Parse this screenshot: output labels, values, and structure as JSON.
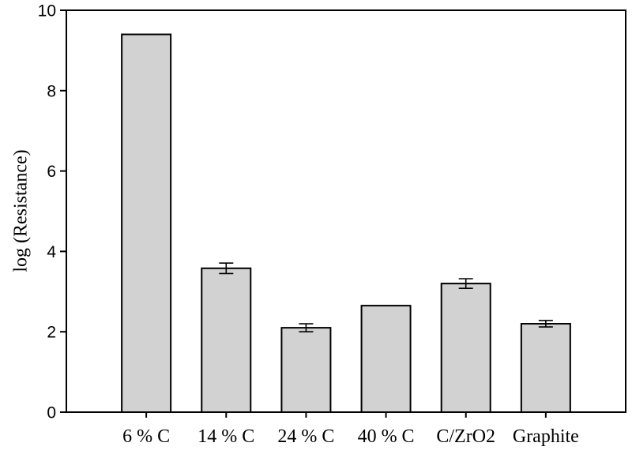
{
  "figure": {
    "background_color": "#ffffff",
    "axis_color": "#000000",
    "text_color": "#000000"
  },
  "chart_data": {
    "type": "bar",
    "title": "",
    "xlabel": "",
    "ylabel": "log (Resistance)",
    "categories": [
      "6 % C",
      "14 % C",
      "24 % C",
      "40 % C",
      "C/ZrO2",
      "Graphite"
    ],
    "values": [
      9.4,
      3.58,
      2.1,
      2.65,
      3.2,
      2.2
    ],
    "errors": [
      0,
      0.13,
      0.1,
      0,
      0.12,
      0.08
    ],
    "ylim": [
      0,
      10
    ],
    "yticks": [
      0,
      2,
      4,
      6,
      8,
      10
    ],
    "grid": false,
    "legend": null,
    "frame_box": true,
    "bar_fill_color": "#d2d2d2",
    "bar_stroke_color": "#000000",
    "error_bar_color": "#000000"
  }
}
